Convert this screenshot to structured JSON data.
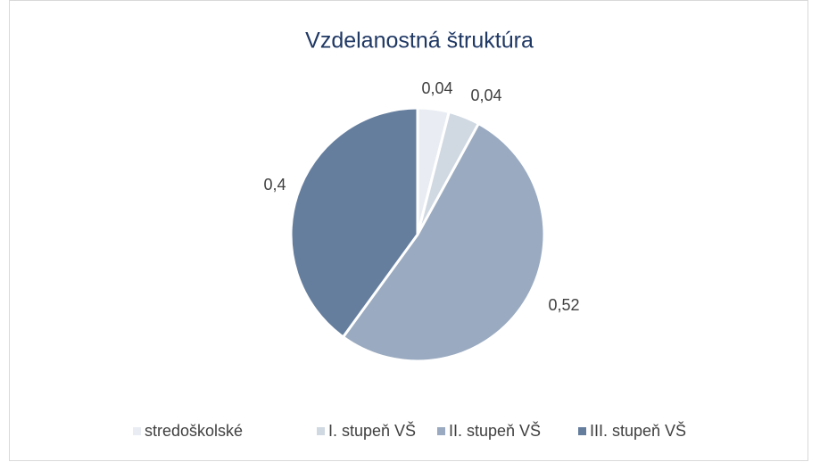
{
  "chart_data": {
    "type": "pie",
    "title": "Vzdelanostná štruktúra",
    "categories": [
      "stredoškolské",
      "I. stupeň VŠ",
      "II. stupeň VŠ",
      "III. stupeň VŠ"
    ],
    "values": [
      0.04,
      0.04,
      0.52,
      0.4
    ],
    "value_labels": [
      "0,04",
      "0,04",
      "0,52",
      "0,4"
    ],
    "colors": [
      "#e9edf3",
      "#d0d8e2",
      "#9aaac0",
      "#657e9e"
    ],
    "legend": "bottom"
  }
}
